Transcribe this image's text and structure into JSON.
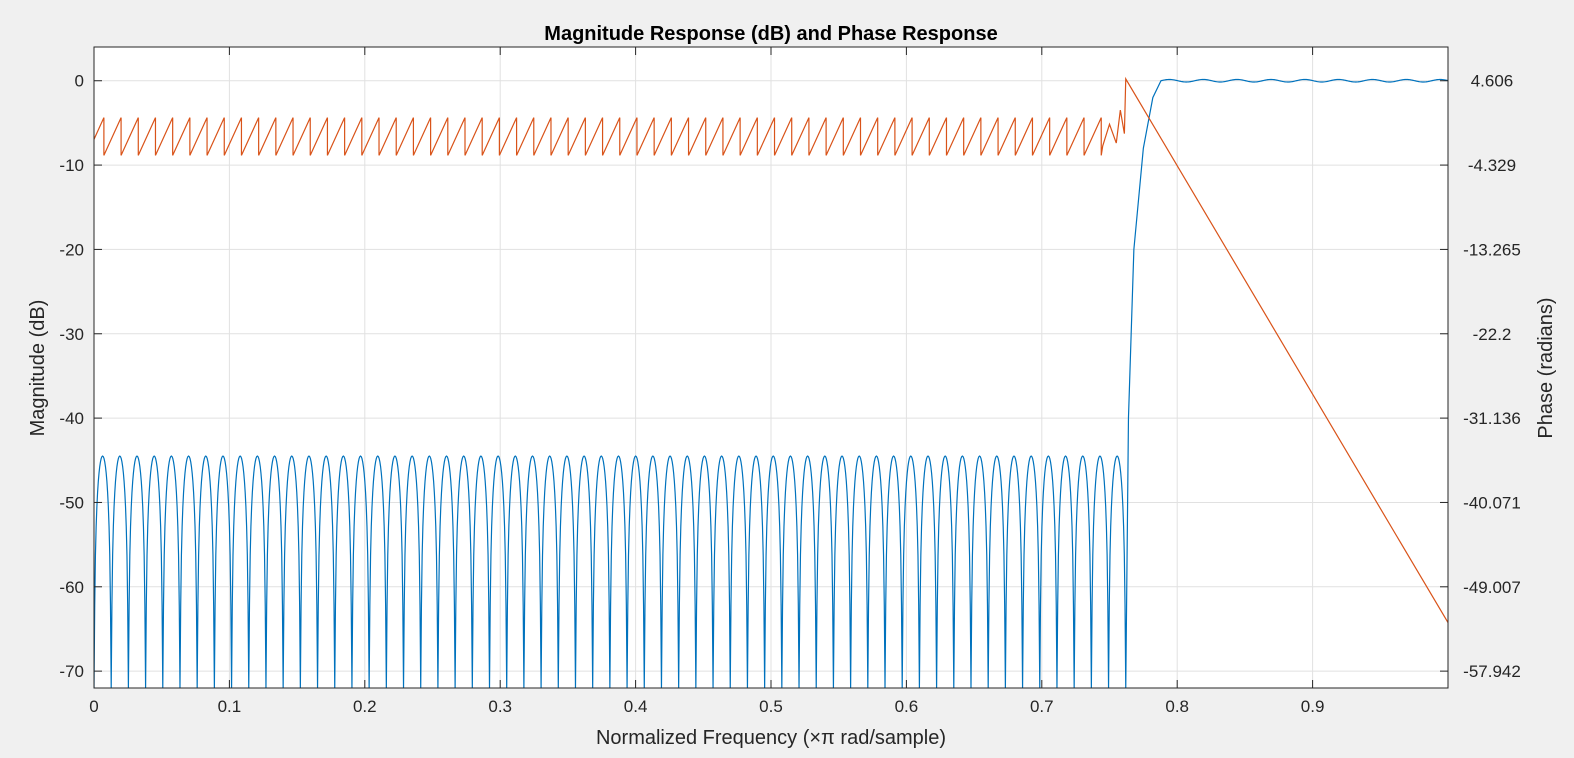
{
  "chart_data": {
    "type": "line",
    "title": "Magnitude Response (dB) and Phase Response",
    "xlabel": "Normalized Frequency (×π rad/sample)",
    "ylabel": "Magnitude (dB)",
    "ylabel_right": "Phase (radians)",
    "xlim": [
      0,
      1
    ],
    "ylim": [
      -72,
      4
    ],
    "ylim_right": [
      -59.729,
      8.181
    ],
    "grid": true,
    "x_ticks": [
      0,
      0.1,
      0.2,
      0.3,
      0.4,
      0.5,
      0.6,
      0.7,
      0.8,
      0.9
    ],
    "x_tick_labels": [
      "0",
      "0.1",
      "0.2",
      "0.3",
      "0.4",
      "0.5",
      "0.6",
      "0.7",
      "0.8",
      "0.9"
    ],
    "y_ticks": [
      0,
      -10,
      -20,
      -30,
      -40,
      -50,
      -60,
      -70
    ],
    "y_tick_labels": [
      "0",
      "-10",
      "-20",
      "-30",
      "-40",
      "-50",
      "-60",
      "-70"
    ],
    "y2_ticks": [
      4.606,
      -4.329,
      -13.265,
      -22.2,
      -31.136,
      -40.071,
      -49.007,
      -57.942
    ],
    "y2_tick_labels": [
      "4.606",
      "-4.329",
      "-13.265",
      "-22.2",
      "-31.136",
      "-40.071",
      "-49.007",
      "-57.942"
    ],
    "colors": {
      "magnitude": "#0072bd",
      "phase": "#d95319"
    },
    "series": [
      {
        "key": "magnitude",
        "axis": "left",
        "stopband": {
          "start": 0,
          "end": 0.762,
          "ripple_peak_db": -44.5,
          "ripple_period": 0.0127,
          "min_db": -72
        },
        "transition": [
          [
            0.762,
            -72
          ],
          [
            0.764,
            -40
          ],
          [
            0.768,
            -20
          ],
          [
            0.775,
            -8
          ],
          [
            0.782,
            -2
          ],
          [
            0.788,
            0
          ]
        ],
        "passband": {
          "start": 0.788,
          "end": 1.0,
          "level_db": 0,
          "ripple_db": 0.15,
          "ripple_period": 0.025
        }
      },
      {
        "key": "phase",
        "axis": "right",
        "sawtooth": {
          "start": 0,
          "end": 0.762,
          "period": 0.0127,
          "high": 0.7,
          "low": -3.3,
          "first_value": -1.6
        },
        "final_points": [
          [
            0.745,
            -2.3
          ],
          [
            0.75,
            0.0
          ],
          [
            0.755,
            -2.0
          ],
          [
            0.758,
            1.5
          ],
          [
            0.761,
            -1.0
          ],
          [
            0.762,
            4.8
          ]
        ],
        "linear_tail": [
          [
            0.762,
            4.8
          ],
          [
            1.0,
            -52.8
          ]
        ]
      }
    ]
  }
}
